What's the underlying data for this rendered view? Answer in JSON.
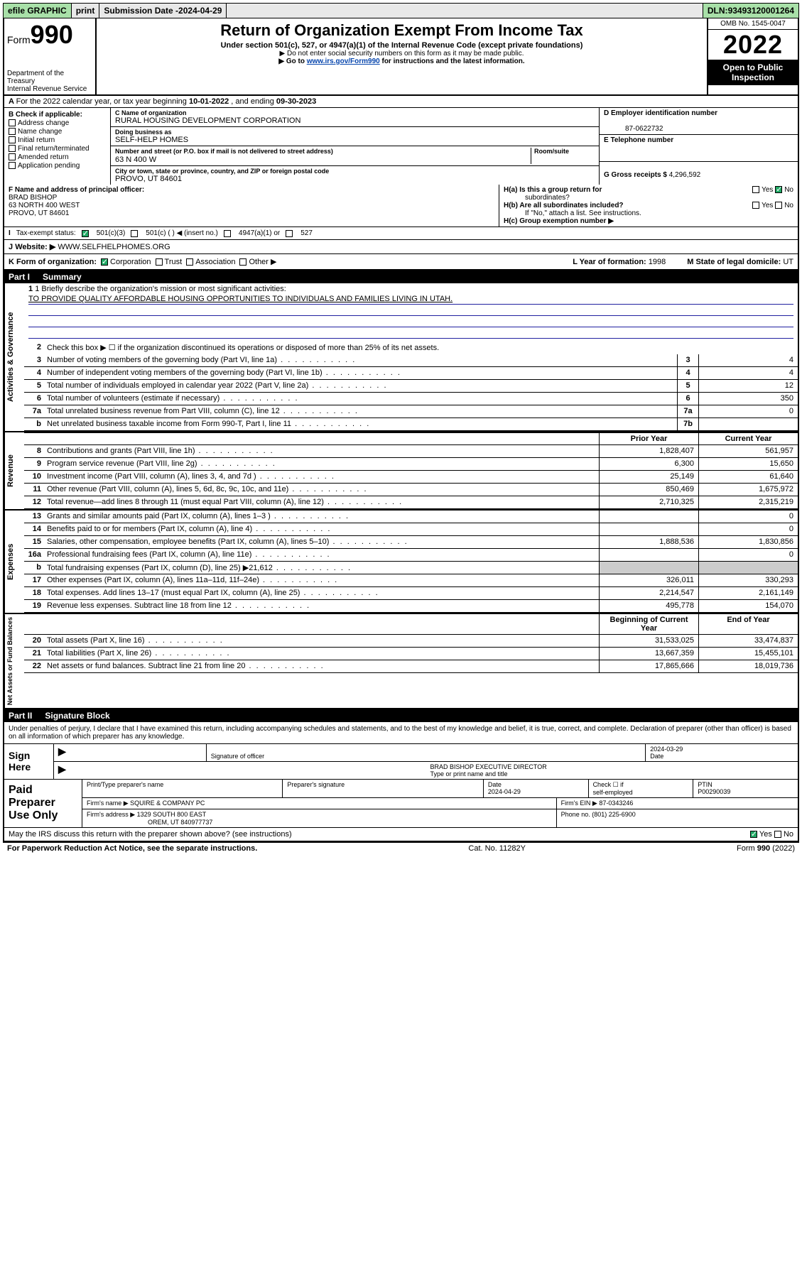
{
  "topbar": {
    "efile": "efile GRAPHIC",
    "print": "print",
    "subdate_label": "Submission Date - ",
    "subdate": "2024-04-29",
    "dln_label": "DLN: ",
    "dln": "93493120001264"
  },
  "header": {
    "form_prefix": "Form",
    "form_num": "990",
    "dept1": "Department of the Treasury",
    "dept2": "Internal Revenue Service",
    "title": "Return of Organization Exempt From Income Tax",
    "sub1": "Under section 501(c), 527, or 4947(a)(1) of the Internal Revenue Code (except private foundations)",
    "sub2": "▶ Do not enter social security numbers on this form as it may be made public.",
    "sub3_pre": "▶ Go to ",
    "sub3_link": "www.irs.gov/Form990",
    "sub3_post": " for instructions and the latest information.",
    "omb": "OMB No. 1545-0047",
    "year": "2022",
    "inspect1": "Open to Public",
    "inspect2": "Inspection"
  },
  "A": {
    "text": "For the 2022 calendar year, or tax year beginning ",
    "begin": "10-01-2022",
    "mid": " , and ending ",
    "end": "09-30-2023"
  },
  "B": {
    "label": "B Check if applicable:",
    "opts": [
      "Address change",
      "Name change",
      "Initial return",
      "Final return/terminated",
      "Amended return",
      "Application pending"
    ]
  },
  "C": {
    "name_lbl": "C Name of organization",
    "name": "RURAL HOUSING DEVELOPMENT CORPORATION",
    "dba_lbl": "Doing business as",
    "dba": "SELF-HELP HOMES",
    "addr_lbl": "Number and street (or P.O. box if mail is not delivered to street address)",
    "room_lbl": "Room/suite",
    "addr": "63 N 400 W",
    "city_lbl": "City or town, state or province, country, and ZIP or foreign postal code",
    "city": "PROVO, UT  84601"
  },
  "D": {
    "lbl": "D Employer identification number",
    "val": "87-0622732"
  },
  "E": {
    "lbl": "E Telephone number",
    "val": ""
  },
  "G": {
    "lbl": "G Gross receipts $ ",
    "val": "4,296,592"
  },
  "F": {
    "lbl": "F  Name and address of principal officer:",
    "l1": "BRAD BISHOP",
    "l2": "63 NORTH 400 WEST",
    "l3": "PROVO, UT  84601"
  },
  "H": {
    "ha": "H(a)  Is this a group return for",
    "ha2": "subordinates?",
    "hb": "H(b)  Are all subordinates included?",
    "hb_note": "If \"No,\" attach a list. See instructions.",
    "hc": "H(c)  Group exemption number ▶",
    "yes": "Yes",
    "no": "No"
  },
  "I": {
    "lbl": "Tax-exempt status:",
    "o1": "501(c)(3)",
    "o2": "501(c) (   ) ◀ (insert no.)",
    "o3": "4947(a)(1) or",
    "o4": "527"
  },
  "J": {
    "lbl": "Website: ▶",
    "val": "WWW.SELFHELPHOMES.ORG"
  },
  "K": {
    "lbl": "K Form of organization:",
    "opts": [
      "Corporation",
      "Trust",
      "Association",
      "Other ▶"
    ],
    "L_lbl": "L Year of formation: ",
    "L_val": "1998",
    "M_lbl": "M State of legal domicile: ",
    "M_val": "UT"
  },
  "part1": {
    "num": "Part I",
    "title": "Summary"
  },
  "mission": {
    "line1_lbl": "1  Briefly describe the organization's mission or most significant activities:",
    "text": "TO PROVIDE QUALITY AFFORDABLE HOUSING OPPORTUNITIES TO INDIVIDUALS AND FAMILIES LIVING IN UTAH."
  },
  "gov": {
    "l2": "Check this box ▶ ☐  if the organization discontinued its operations or disposed of more than 25% of its net assets.",
    "rows": [
      {
        "n": "3",
        "d": "Number of voting members of the governing body (Part VI, line 1a)",
        "box": "3",
        "v": "4"
      },
      {
        "n": "4",
        "d": "Number of independent voting members of the governing body (Part VI, line 1b)",
        "box": "4",
        "v": "4"
      },
      {
        "n": "5",
        "d": "Total number of individuals employed in calendar year 2022 (Part V, line 2a)",
        "box": "5",
        "v": "12"
      },
      {
        "n": "6",
        "d": "Total number of volunteers (estimate if necessary)",
        "box": "6",
        "v": "350"
      },
      {
        "n": "7a",
        "d": "Total unrelated business revenue from Part VIII, column (C), line 12",
        "box": "7a",
        "v": "0"
      },
      {
        "n": "b",
        "d": "Net unrelated business taxable income from Form 990-T, Part I, line 11",
        "box": "7b",
        "v": ""
      }
    ]
  },
  "colhdr": {
    "prior": "Prior Year",
    "curr": "Current Year",
    "beg": "Beginning of Current Year",
    "end": "End of Year"
  },
  "rev": [
    {
      "n": "8",
      "d": "Contributions and grants (Part VIII, line 1h)",
      "p": "1,828,407",
      "c": "561,957"
    },
    {
      "n": "9",
      "d": "Program service revenue (Part VIII, line 2g)",
      "p": "6,300",
      "c": "15,650"
    },
    {
      "n": "10",
      "d": "Investment income (Part VIII, column (A), lines 3, 4, and 7d )",
      "p": "25,149",
      "c": "61,640"
    },
    {
      "n": "11",
      "d": "Other revenue (Part VIII, column (A), lines 5, 6d, 8c, 9c, 10c, and 11e)",
      "p": "850,469",
      "c": "1,675,972"
    },
    {
      "n": "12",
      "d": "Total revenue—add lines 8 through 11 (must equal Part VIII, column (A), line 12)",
      "p": "2,710,325",
      "c": "2,315,219"
    }
  ],
  "exp": [
    {
      "n": "13",
      "d": "Grants and similar amounts paid (Part IX, column (A), lines 1–3 )",
      "p": "",
      "c": "0"
    },
    {
      "n": "14",
      "d": "Benefits paid to or for members (Part IX, column (A), line 4)",
      "p": "",
      "c": "0"
    },
    {
      "n": "15",
      "d": "Salaries, other compensation, employee benefits (Part IX, column (A), lines 5–10)",
      "p": "1,888,536",
      "c": "1,830,856"
    },
    {
      "n": "16a",
      "d": "Professional fundraising fees (Part IX, column (A), line 11e)",
      "p": "",
      "c": "0"
    },
    {
      "n": "b",
      "d": "Total fundraising expenses (Part IX, column (D), line 25) ▶21,612",
      "p": "",
      "c": ""
    },
    {
      "n": "17",
      "d": "Other expenses (Part IX, column (A), lines 11a–11d, 11f–24e)",
      "p": "326,011",
      "c": "330,293"
    },
    {
      "n": "18",
      "d": "Total expenses. Add lines 13–17 (must equal Part IX, column (A), line 25)",
      "p": "2,214,547",
      "c": "2,161,149"
    },
    {
      "n": "19",
      "d": "Revenue less expenses. Subtract line 18 from line 12",
      "p": "495,778",
      "c": "154,070"
    }
  ],
  "net": [
    {
      "n": "20",
      "d": "Total assets (Part X, line 16)",
      "p": "31,533,025",
      "c": "33,474,837"
    },
    {
      "n": "21",
      "d": "Total liabilities (Part X, line 26)",
      "p": "13,667,359",
      "c": "15,455,101"
    },
    {
      "n": "22",
      "d": "Net assets or fund balances. Subtract line 21 from line 20",
      "p": "17,865,666",
      "c": "18,019,736"
    }
  ],
  "vlabels": {
    "gov": "Activities & Governance",
    "rev": "Revenue",
    "exp": "Expenses",
    "net": "Net Assets or Fund Balances"
  },
  "part2": {
    "num": "Part II",
    "title": "Signature Block"
  },
  "sig": {
    "penalty": "Under penalties of perjury, I declare that I have examined this return, including accompanying schedules and statements, and to the best of my knowledge and belief, it is true, correct, and complete. Declaration of preparer (other than officer) is based on all information of which preparer has any knowledge.",
    "sign_here": "Sign Here",
    "sig_officer": "Signature of officer",
    "date": "Date",
    "date_val": "2024-03-29",
    "name_title": "BRAD BISHOP  EXECUTIVE DIRECTOR",
    "name_lbl": "Type or print name and title"
  },
  "prep": {
    "title": "Paid Preparer Use Only",
    "c1": "Print/Type preparer's name",
    "c2": "Preparer's signature",
    "c3": "Date",
    "c3v": "2024-04-29",
    "c4a": "Check ☐ if",
    "c4b": "self-employed",
    "c5": "PTIN",
    "c5v": "P00290039",
    "firm_lbl": "Firm's name     ▶ ",
    "firm": "SQUIRE & COMPANY PC",
    "ein_lbl": "Firm's EIN ▶ ",
    "ein": "87-0343246",
    "addr_lbl": "Firm's address ▶ ",
    "addr1": "1329 SOUTH 800 EAST",
    "addr2": "OREM, UT 840977737",
    "phone_lbl": "Phone no. ",
    "phone": "(801) 225-6900"
  },
  "mayirs": {
    "q": "May the IRS discuss this return with the preparer shown above? (see instructions)",
    "yes": "Yes",
    "no": "No"
  },
  "footer": {
    "l": "For Paperwork Reduction Act Notice, see the separate instructions.",
    "m": "Cat. No. 11282Y",
    "r": "Form 990 (2022)"
  }
}
